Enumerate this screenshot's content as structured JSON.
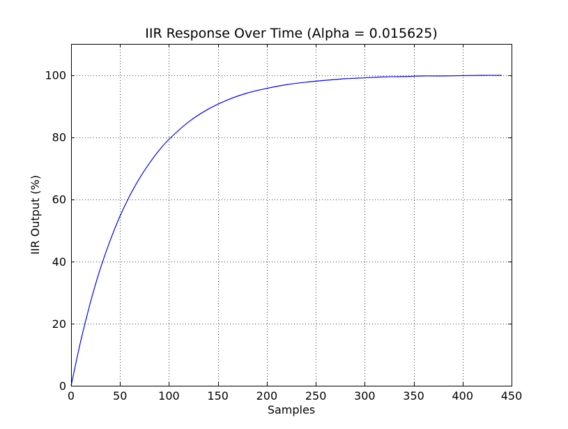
{
  "chart_data": {
    "type": "line",
    "title": "IIR Response Over Time (Alpha = 0.015625)",
    "xlabel": "Samples",
    "ylabel": "IIR Output (%)",
    "xlim": [
      0,
      450
    ],
    "ylim": [
      0,
      110
    ],
    "xticks": [
      0,
      50,
      100,
      150,
      200,
      250,
      300,
      350,
      400,
      450
    ],
    "yticks": [
      0,
      20,
      40,
      60,
      80,
      100
    ],
    "xtick_labels": [
      "0",
      "50",
      "100",
      "150",
      "200",
      "250",
      "300",
      "350",
      "400",
      "450"
    ],
    "ytick_labels": [
      "0",
      "20",
      "40",
      "60",
      "80",
      "100"
    ],
    "grid": true,
    "grid_style": "dotted",
    "line_color": "#0000ff",
    "series": [
      {
        "x": [
          0,
          10,
          20,
          30,
          40,
          50,
          60,
          70,
          80,
          90,
          100,
          120,
          140,
          160,
          180,
          200,
          220,
          240,
          260,
          280,
          300,
          320,
          340,
          360,
          380,
          400,
          420,
          440
        ],
        "values": [
          0,
          14.6,
          27.1,
          37.8,
          46.8,
          54.6,
          61.2,
          66.8,
          71.6,
          75.8,
          79.3,
          84.9,
          89.0,
          92.0,
          94.2,
          95.7,
          96.9,
          97.7,
          98.3,
          98.8,
          99.1,
          99.4,
          99.5,
          99.7,
          99.7,
          99.8,
          99.9,
          99.9
        ]
      }
    ]
  }
}
